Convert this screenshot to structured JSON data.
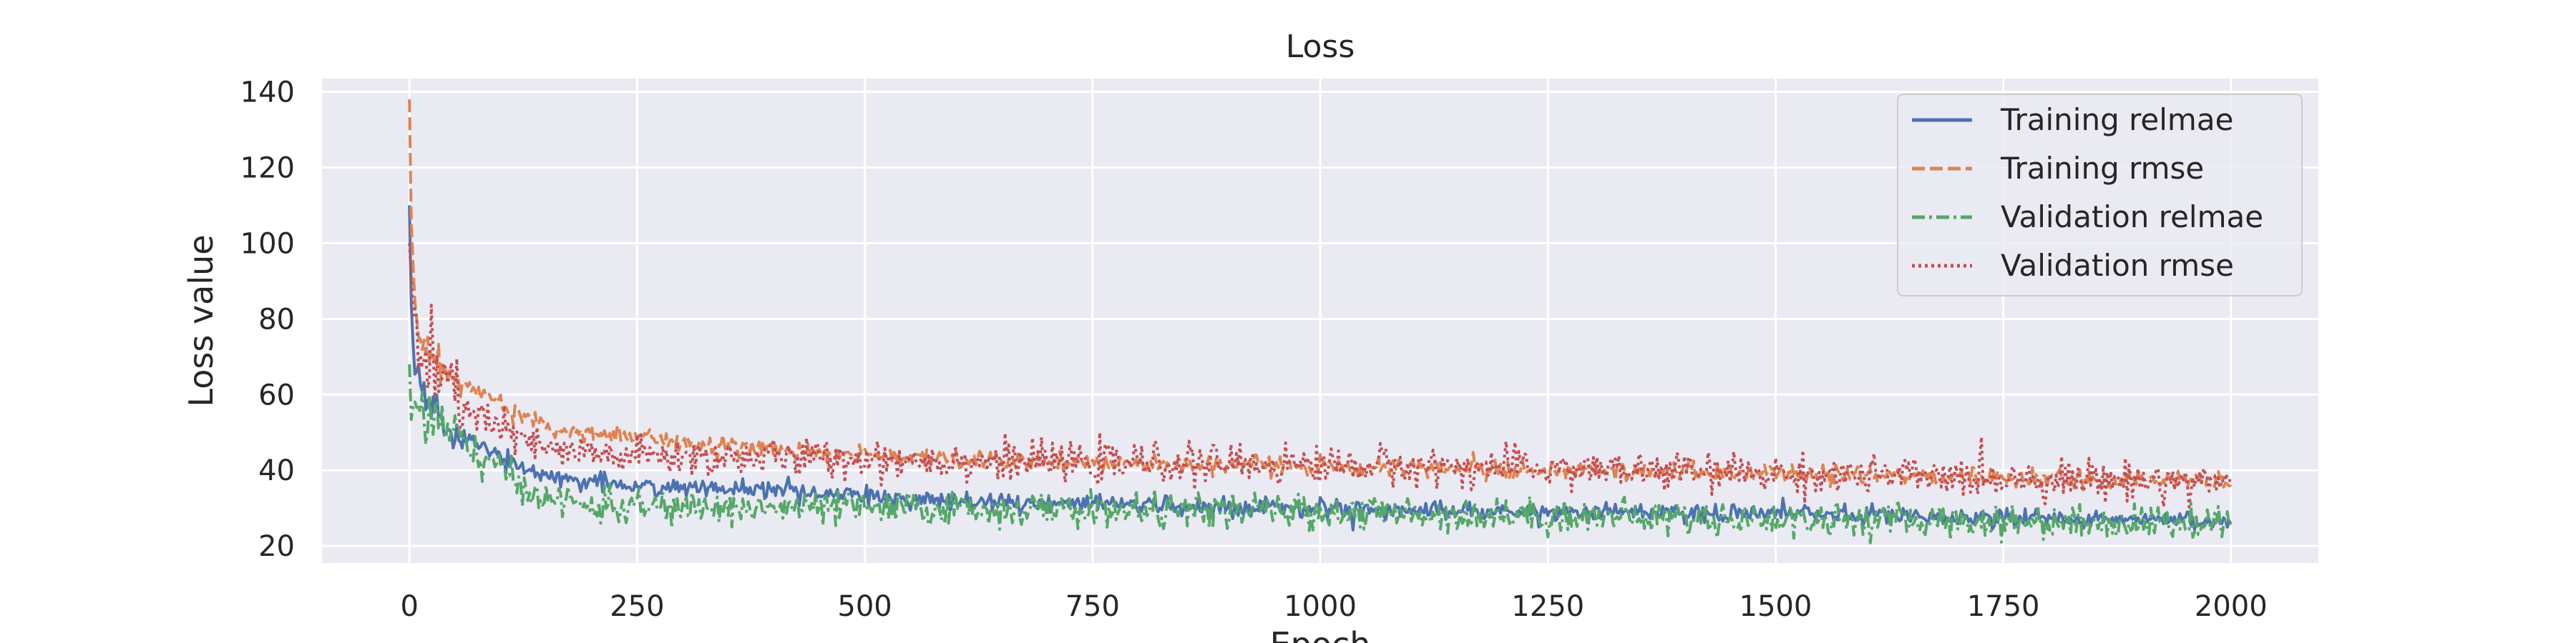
{
  "chart_data": {
    "type": "line",
    "title": "Loss",
    "xlabel": "Epoch",
    "ylabel": "Loss value",
    "xlim": [
      -96,
      2096
    ],
    "ylim": [
      15.5,
      143.5
    ],
    "xticks": [
      0,
      250,
      500,
      750,
      1000,
      1250,
      1500,
      1750,
      2000
    ],
    "yticks": [
      20,
      40,
      60,
      80,
      100,
      120,
      140
    ],
    "grid": true,
    "legend_position": "top-right",
    "x_range": [
      0,
      2000
    ],
    "series": [
      {
        "name": "Training relmae",
        "color": "#4c72b0",
        "dash": "solid",
        "curve": [
          [
            0,
            110
          ],
          [
            3,
            72
          ],
          [
            10,
            62
          ],
          [
            25,
            56
          ],
          [
            50,
            50
          ],
          [
            75,
            47
          ],
          [
            100,
            44
          ],
          [
            130,
            40
          ],
          [
            160,
            38
          ],
          [
            200,
            37
          ],
          [
            250,
            36
          ],
          [
            300,
            35.5
          ],
          [
            400,
            34.5
          ],
          [
            500,
            33
          ],
          [
            600,
            32
          ],
          [
            750,
            31
          ],
          [
            1000,
            30
          ],
          [
            1250,
            29
          ],
          [
            1500,
            28.5
          ],
          [
            1750,
            27.5
          ],
          [
            2000,
            26.5
          ]
        ],
        "noise": 1.2
      },
      {
        "name": "Training rmse",
        "color": "#dd8452",
        "dash": "dashed",
        "curve": [
          [
            0,
            138
          ],
          [
            3,
            92
          ],
          [
            10,
            77
          ],
          [
            25,
            70
          ],
          [
            50,
            64
          ],
          [
            75,
            61
          ],
          [
            100,
            58
          ],
          [
            130,
            54
          ],
          [
            160,
            51
          ],
          [
            200,
            49.5
          ],
          [
            250,
            48.5
          ],
          [
            300,
            47.5
          ],
          [
            400,
            45.5
          ],
          [
            500,
            44
          ],
          [
            600,
            43
          ],
          [
            750,
            42
          ],
          [
            1000,
            41
          ],
          [
            1250,
            40
          ],
          [
            1500,
            39
          ],
          [
            1750,
            38
          ],
          [
            2000,
            37
          ]
        ],
        "noise": 1.2
      },
      {
        "name": "Validation relmae",
        "color": "#55a868",
        "dash": "dashdot",
        "curve": [
          [
            0,
            68
          ],
          [
            3,
            60
          ],
          [
            10,
            56
          ],
          [
            25,
            53
          ],
          [
            50,
            48
          ],
          [
            75,
            44
          ],
          [
            100,
            40
          ],
          [
            130,
            35
          ],
          [
            160,
            32
          ],
          [
            200,
            30.5
          ],
          [
            300,
            30
          ],
          [
            500,
            30
          ],
          [
            750,
            29.5
          ],
          [
            1000,
            29
          ],
          [
            1250,
            28
          ],
          [
            1500,
            27
          ],
          [
            1750,
            26.5
          ],
          [
            2000,
            26
          ]
        ],
        "noise": 2.2
      },
      {
        "name": "Validation rmse",
        "color": "#c44e52",
        "dash": "dotted",
        "curve": [
          [
            0,
            100
          ],
          [
            3,
            82
          ],
          [
            10,
            72
          ],
          [
            25,
            65
          ],
          [
            50,
            60
          ],
          [
            75,
            55
          ],
          [
            100,
            51
          ],
          [
            130,
            47
          ],
          [
            160,
            45
          ],
          [
            200,
            44
          ],
          [
            300,
            43.5
          ],
          [
            500,
            43
          ],
          [
            750,
            42
          ],
          [
            1000,
            41.5
          ],
          [
            1250,
            40.5
          ],
          [
            1500,
            39
          ],
          [
            1750,
            38
          ],
          [
            2000,
            37
          ]
        ],
        "noise": 2.5
      }
    ]
  }
}
